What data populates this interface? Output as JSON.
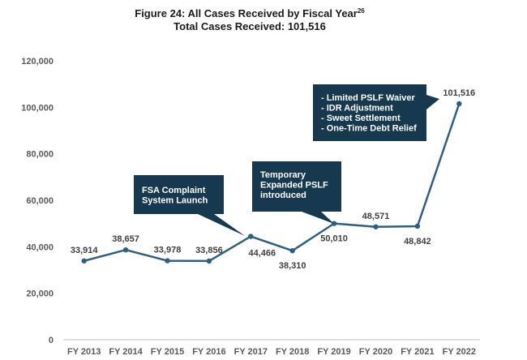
{
  "chart_data": {
    "type": "line",
    "title": "Figure 24: All Cases Received by Fiscal Year",
    "title_superscript": "26",
    "subtitle": "Total Cases Received: 101,516",
    "categories": [
      "FY 2013",
      "FY 2014",
      "FY 2015",
      "FY 2016",
      "FY 2017",
      "FY 2018",
      "FY 2019",
      "FY 2020",
      "FY 2021",
      "FY 2022"
    ],
    "series": [
      {
        "values": [
          33914,
          38657,
          33978,
          33856,
          44466,
          38310,
          50010,
          48571,
          48842,
          101516
        ],
        "data_labels": [
          "33,914",
          "38,657",
          "33,978",
          "33,856",
          "44,466",
          "38,310",
          "50,010",
          "48,571",
          "48,842",
          "101,516"
        ],
        "color": "#2e5f7e"
      }
    ],
    "ylim": [
      0,
      120000
    ],
    "yticks": [
      0,
      20000,
      40000,
      60000,
      80000,
      100000,
      120000
    ],
    "ytick_labels": [
      "0",
      "20,000",
      "40,000",
      "60,000",
      "80,000",
      "100,000",
      "120,000"
    ],
    "grid": false,
    "legend": "none",
    "annotations": [
      {
        "lines": [
          "FSA Complaint",
          "System Launch"
        ],
        "category_index": 4
      },
      {
        "lines": [
          "Temporary",
          "Expanded PSLF",
          "introduced"
        ],
        "category_index": 6
      },
      {
        "lines": [
          "- Limited PSLF Waiver",
          "- IDR Adjustment",
          "- Sweet Settlement",
          "- One-Time Debt Relief"
        ],
        "category_index": 9
      }
    ],
    "callout_color": "#17394f"
  }
}
